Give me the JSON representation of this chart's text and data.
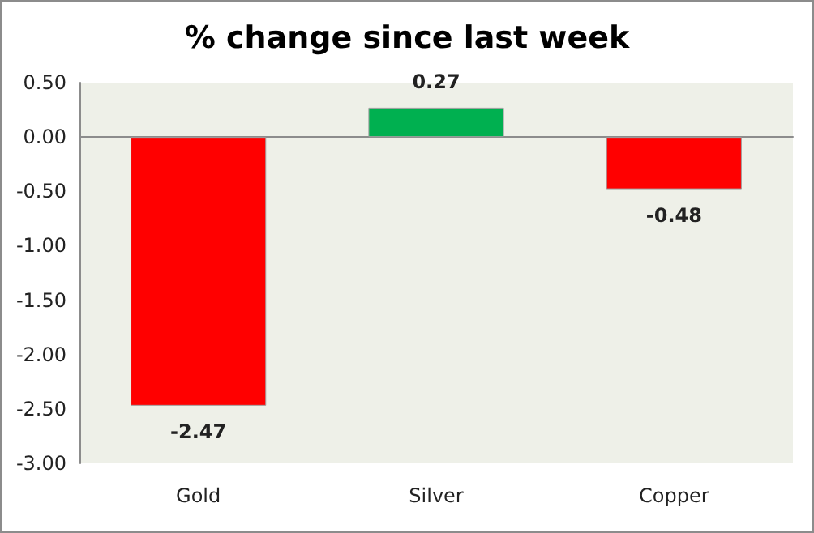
{
  "chart_data": {
    "type": "bar",
    "title": "% change since last week",
    "categories": [
      "Gold",
      "Silver",
      "Copper"
    ],
    "values": [
      -2.47,
      0.27,
      -0.48
    ],
    "colors": [
      "#ff0000",
      "#00b050",
      "#ff0000"
    ],
    "ylim": [
      -3,
      0.5
    ],
    "yticks": [
      {
        "value": -3,
        "label": "-3.00"
      },
      {
        "value": -2.5,
        "label": "-2.50"
      },
      {
        "value": -2,
        "label": "-2.00"
      },
      {
        "value": -1.5,
        "label": "-1.50"
      },
      {
        "value": -1,
        "label": "-1.00"
      },
      {
        "value": -0.5,
        "label": "-0.50"
      },
      {
        "value": 0,
        "label": "0.00"
      },
      {
        "value": 0.5,
        "label": "0.50"
      }
    ],
    "data_labels": true
  }
}
